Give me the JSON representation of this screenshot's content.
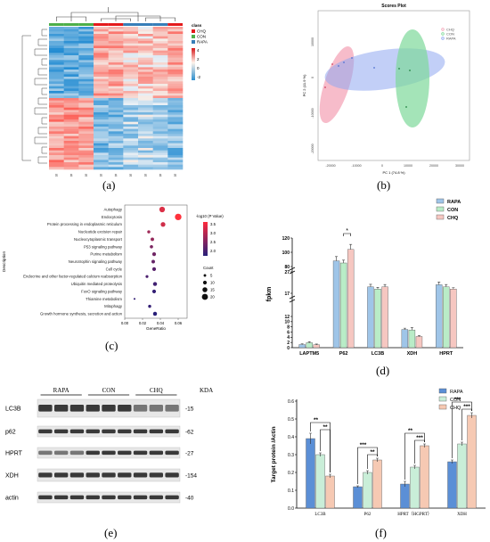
{
  "panel_labels": [
    "(a)",
    "(b)",
    "(c)",
    "(d)",
    "(e)",
    "(f)"
  ],
  "heatmap": {
    "legend_title": "class",
    "classes": [
      {
        "name": "CHQ",
        "color": "#e41a1c"
      },
      {
        "name": "CON",
        "color": "#4daf4a"
      },
      {
        "name": "RAPA",
        "color": "#377eb8"
      }
    ],
    "scale_ticks": [
      "4",
      "2",
      "0",
      "-2"
    ],
    "column_labels": [
      "S",
      "S",
      "S",
      "S",
      "S",
      "S",
      "S",
      "S",
      "S"
    ]
  },
  "scores_plot": {
    "title": "Scores Plot",
    "xlabel": "PC 1 (74.8 %)",
    "ylabel": "PC 2 (11.9 %)",
    "x_ticks": [
      "-20000",
      "-10000",
      "0",
      "10000",
      "20000",
      "30000"
    ],
    "y_ticks": [
      "10000",
      "0",
      "-10000",
      "-20000"
    ],
    "legend": [
      {
        "name": "CHQ",
        "color": "#f4a6b8"
      },
      {
        "name": "CON",
        "color": "#7ed99a"
      },
      {
        "name": "RAPA",
        "color": "#8fa8f0"
      }
    ]
  },
  "chart_data": [
    {
      "type": "scatter",
      "panel": "c",
      "xlabel": "GeneRatio",
      "ylabel": "Description",
      "x_ticks": [
        "0.00",
        "0.02",
        "0.04",
        "0.06"
      ],
      "xlim": [
        0.0,
        0.07
      ],
      "color_legend_title": "-log10 (P Value)",
      "color_ticks": [
        "3.5",
        "3.0",
        "2.5",
        "2.0"
      ],
      "size_legend_title": "Count",
      "size_ticks": [
        "5",
        "10",
        "15",
        "20"
      ],
      "terms": [
        {
          "name": "Autophagy",
          "x": 0.042,
          "count": 18,
          "p": 3.3
        },
        {
          "name": "Endocytosis",
          "x": 0.06,
          "count": 22,
          "p": 3.6
        },
        {
          "name": "Protein processing in endoplasmic reticulum",
          "x": 0.043,
          "count": 14,
          "p": 3.2
        },
        {
          "name": "Nucleotide excision repair",
          "x": 0.027,
          "count": 7,
          "p": 2.8
        },
        {
          "name": "Nucleocytoplasmic transport",
          "x": 0.031,
          "count": 9,
          "p": 2.7
        },
        {
          "name": "P53 signaling pathway",
          "x": 0.03,
          "count": 8,
          "p": 2.5
        },
        {
          "name": "Purine metabolism",
          "x": 0.033,
          "count": 10,
          "p": 2.4
        },
        {
          "name": "Neurotrophin signaling pathway",
          "x": 0.032,
          "count": 9,
          "p": 2.3
        },
        {
          "name": "Cell cycle",
          "x": 0.033,
          "count": 10,
          "p": 2.2
        },
        {
          "name": "Endocrine and other factor-regulated calcium reabsorption",
          "x": 0.025,
          "count": 6,
          "p": 2.1
        },
        {
          "name": "Ubiquitin mediated proteolysis",
          "x": 0.034,
          "count": 11,
          "p": 2.0
        },
        {
          "name": "FoxO signaling pathway",
          "x": 0.033,
          "count": 10,
          "p": 1.9
        },
        {
          "name": "Thiamine metabolism",
          "x": 0.011,
          "count": 2,
          "p": 1.9
        },
        {
          "name": "Mitophagy",
          "x": 0.028,
          "count": 7,
          "p": 1.9
        },
        {
          "name": "Growth hormone synthesis, secretion and action",
          "x": 0.034,
          "count": 11,
          "p": 1.8
        }
      ]
    },
    {
      "type": "bar",
      "panel": "d",
      "ylabel": "fpkm",
      "categories": [
        "LAPTM5",
        "P62",
        "LC3B",
        "XDH",
        "HPRT"
      ],
      "series": [
        {
          "name": "RAPA",
          "color": "#9fc5e8",
          "values": [
            1.2,
            88,
            20,
            7.0,
            21
          ]
        },
        {
          "name": "CON",
          "color": "#b9ecc7",
          "values": [
            1.9,
            85,
            19,
            6.8,
            20
          ]
        },
        {
          "name": "CHQ",
          "color": "#f6c7c1",
          "values": [
            1.1,
            104,
            20,
            4.3,
            19
          ]
        }
      ],
      "errors": [
        [
          0.3,
          6,
          1.2,
          0.5,
          1.3
        ],
        [
          0.4,
          4,
          0.8,
          0.9,
          1.1
        ],
        [
          0.3,
          7,
          1.1,
          0.3,
          0.6
        ]
      ],
      "y_ticks_lower": [
        "0",
        "2",
        "4",
        "6",
        "8",
        "10",
        "12"
      ],
      "y_ticks_upper": [
        "17",
        "27"
      ],
      "y_ticks_top": [
        "80",
        "100",
        "120"
      ],
      "significance": [
        {
          "category": "P62",
          "label": "*"
        }
      ]
    },
    {
      "type": "bar",
      "panel": "f",
      "ylabel": "Target protein /Actin",
      "categories": [
        "LC3B",
        "P62",
        "HPRT（HGPRT）",
        "XDH"
      ],
      "series": [
        {
          "name": "RAPA",
          "color": "#5b8fd6",
          "values": [
            0.39,
            0.12,
            0.135,
            0.26
          ]
        },
        {
          "name": "CON",
          "color": "#c9eed8",
          "values": [
            0.3,
            0.2,
            0.23,
            0.36
          ]
        },
        {
          "name": "CHQ",
          "color": "#f6c9b3",
          "values": [
            0.18,
            0.27,
            0.35,
            0.52
          ]
        }
      ],
      "errors": [
        [
          0.03,
          0.005,
          0.015,
          0.01
        ],
        [
          0.01,
          0.01,
          0.01,
          0.01
        ],
        [
          0.01,
          0.01,
          0.01,
          0.015
        ]
      ],
      "ylim": [
        0,
        0.6
      ],
      "y_ticks": [
        "0.0",
        "0.1",
        "0.2",
        "0.3",
        "0.4",
        "0.5",
        "0.6"
      ],
      "significance": [
        [
          "**",
          "**"
        ],
        [
          "***",
          "**"
        ],
        [
          "**",
          "***"
        ],
        [
          "***",
          "***"
        ]
      ]
    }
  ],
  "western_blot": {
    "groups": [
      "RAPA",
      "CON",
      "CHQ"
    ],
    "kda_header": "KDA",
    "rows": [
      {
        "name": "LC3B",
        "kda": "-15"
      },
      {
        "name": "p62",
        "kda": "-62"
      },
      {
        "name": "HPRT",
        "kda": "-27"
      },
      {
        "name": "XDH",
        "kda": "-154"
      },
      {
        "name": "actin",
        "kda": "-40"
      }
    ]
  }
}
